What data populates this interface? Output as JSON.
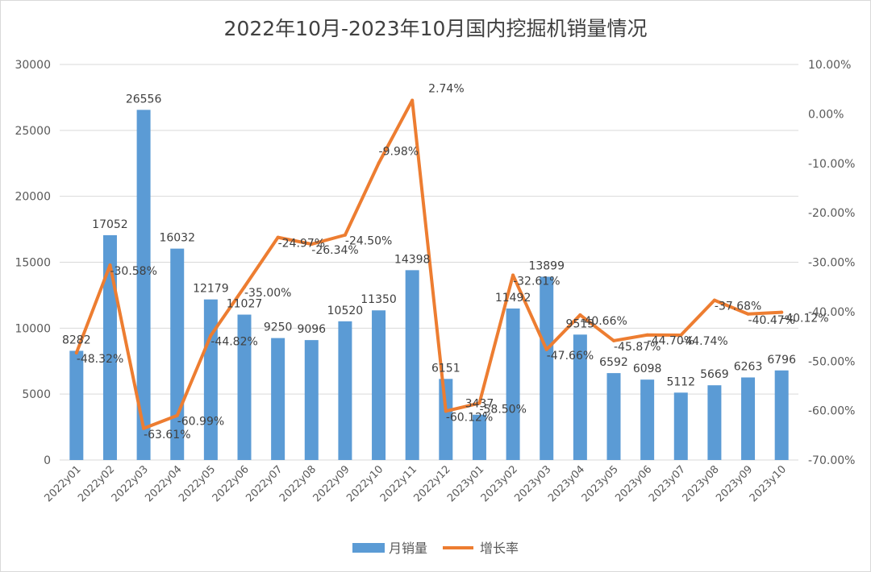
{
  "chart_data": {
    "type": "bar+line",
    "title": "2022年10月-2023年10月国内挖掘机销量情况",
    "categories": [
      "2022y01",
      "2022y02",
      "2022y03",
      "2022y04",
      "2022y05",
      "2022y06",
      "2022y07",
      "2022y08",
      "2022y09",
      "2022y10",
      "2022y11",
      "2022y12",
      "2023y01",
      "2023y02",
      "2023y03",
      "2023y04",
      "2023y05",
      "2023y06",
      "2023y07",
      "2023y08",
      "2023y09",
      "2023y10"
    ],
    "series": [
      {
        "name": "月销量",
        "type": "bar",
        "axis": "left",
        "color": "#5b9bd5",
        "values": [
          8282,
          17052,
          26556,
          16032,
          12179,
          11027,
          9250,
          9096,
          10520,
          11350,
          14398,
          6151,
          3437,
          11492,
          13899,
          9513,
          6592,
          6098,
          5112,
          5669,
          6263,
          6796
        ],
        "labels": [
          "8282",
          "17052",
          "26556",
          "16032",
          "12179",
          "11027",
          "9250",
          "9096",
          "10520",
          "11350",
          "14398",
          "6151",
          "3437",
          "11492",
          "13899",
          "9513",
          "6592",
          "6098",
          "5112",
          "5669",
          "6263",
          "6796"
        ]
      },
      {
        "name": "增长率",
        "type": "line",
        "axis": "right",
        "color": "#ed7d31",
        "values": [
          -48.32,
          -30.58,
          -63.61,
          -60.99,
          -44.82,
          -35.0,
          -24.97,
          -26.34,
          -24.5,
          -9.98,
          2.74,
          -60.12,
          -58.5,
          -32.61,
          -47.66,
          -40.66,
          -45.87,
          -44.7,
          -44.74,
          -37.68,
          -40.47,
          -40.12
        ],
        "labels": [
          "-48.32%",
          "-30.58%",
          "-63.61%",
          "-60.99%",
          "-44.82%",
          "-35.00%",
          "-24.97%",
          "-26.34%",
          "-24.50%",
          "-9.98%",
          "2.74%",
          "-60.12%",
          "-58.50%",
          "-32.61%",
          "-47.66%",
          "-40.66%",
          "-45.87%",
          "-44.70%",
          "-44.74%",
          "-37.68%",
          "-40.47%",
          "-40.12%"
        ]
      }
    ],
    "y_left": {
      "min": 0,
      "max": 30000,
      "step": 5000,
      "ticks": [
        "0",
        "5000",
        "10000",
        "15000",
        "20000",
        "25000",
        "30000"
      ]
    },
    "y_right": {
      "min": -70,
      "max": 10,
      "step": 10,
      "ticks": [
        "-70.00%",
        "-60.00%",
        "-50.00%",
        "-40.00%",
        "-30.00%",
        "-20.00%",
        "-10.00%",
        "0.00%",
        "10.00%"
      ]
    },
    "legend": {
      "position": "bottom",
      "items": [
        "月销量",
        "增长率"
      ]
    },
    "grid": true
  }
}
